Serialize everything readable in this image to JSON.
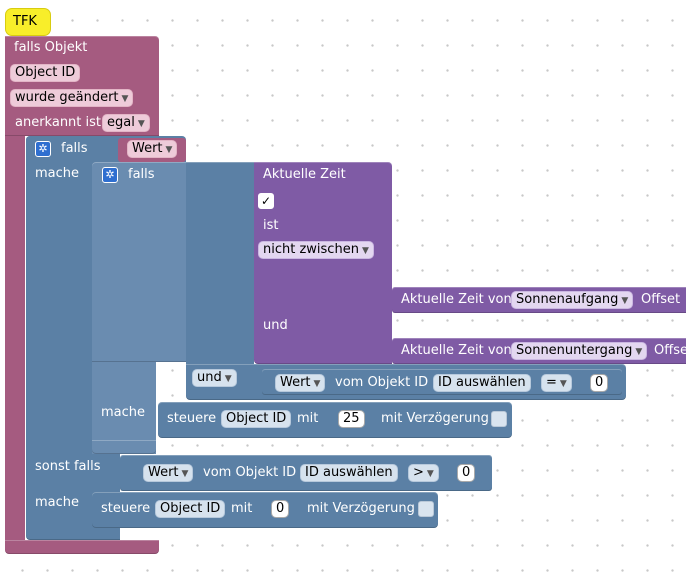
{
  "hat": {
    "label": "TFK"
  },
  "trigger": {
    "label_falls_objekt": "falls Objekt",
    "object_id": "Object ID",
    "change_mode": "wurde geändert",
    "acknowledged_label": "anerkannt ist",
    "acknowledged_value": "egal"
  },
  "outer_if": {
    "falls": "falls",
    "wert": "Wert",
    "mache": "mache",
    "sonst_falls": "sonst falls",
    "mache2": "mache"
  },
  "inner_if": {
    "falls": "falls",
    "mache": "mache"
  },
  "time_block": {
    "title": "Aktuelle Zeit",
    "check": "✓",
    "ist": "ist",
    "compare": "nicht zwischen",
    "und": "und",
    "sunrise_prefix": "Aktuelle Zeit von",
    "sunrise_value": "Sonnenaufgang",
    "sunrise_suffix": "Offset",
    "sunset_prefix": "Aktuelle Zeit von",
    "sunset_value": "Sonnenuntergang",
    "sunset_suffix": "Offse"
  },
  "logic": {
    "und": "und",
    "wert1": "Wert",
    "vom_objekt_id_1": "vom Objekt ID",
    "id_select_1": "ID auswählen",
    "op1": "=",
    "val1": "0",
    "wert2": "Wert",
    "vom_objekt_id_2": "vom Objekt ID",
    "id_select_2": "ID auswählen",
    "op2": ">",
    "val2": "0"
  },
  "actions": {
    "steuere1": "steuere",
    "object_id1": "Object ID",
    "mit1": "mit",
    "value1": "25",
    "delay1": "mit Verzögerung",
    "steuere2": "steuere",
    "object_id2": "Object ID",
    "mit2": "mit",
    "value2": "0",
    "delay2": "mit Verzögerung"
  },
  "colors": {
    "hat": "#f8ee2a",
    "trigger": "#a55b80",
    "control": "#5b80a5",
    "time": "#7f5ba5"
  },
  "icons": {
    "gear": "gear-icon",
    "dropdown": "dropdown-arrow-icon"
  }
}
